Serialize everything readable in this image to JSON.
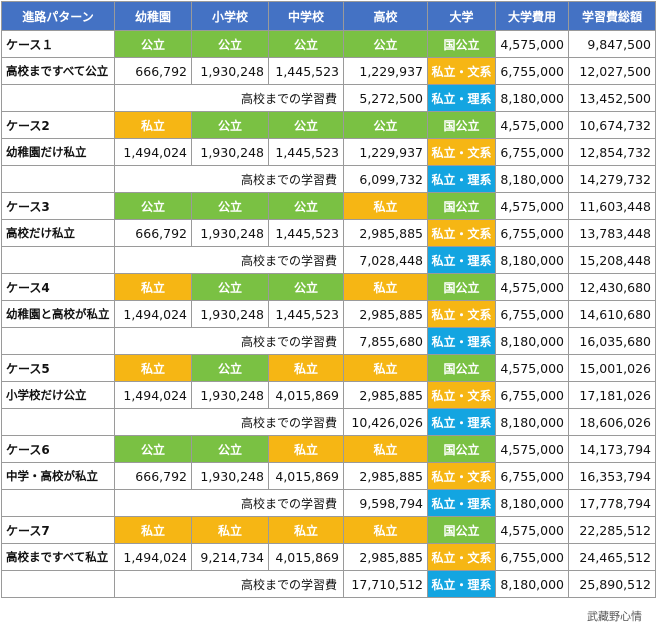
{
  "headers": [
    "進路パターン",
    "幼稚園",
    "小学校",
    "中学校",
    "高校",
    "大学",
    "大学費用",
    "学習費総額"
  ],
  "subtotal_label": "高校までの学習費",
  "university_labels": [
    "国公立",
    "私立・文系",
    "私立・理系"
  ],
  "university_costs": [
    "4,575,000",
    "6,755,000",
    "8,180,000"
  ],
  "cases": [
    {
      "title": "ケース１",
      "desc": "高校まですべて公立",
      "types": [
        "公立",
        "公立",
        "公立",
        "公立"
      ],
      "costs": [
        "666,792",
        "1,930,248",
        "1,445,523",
        "1,229,937"
      ],
      "subtotal": "5,272,500",
      "totals": [
        "9,847,500",
        "12,027,500",
        "13,452,500"
      ]
    },
    {
      "title": "ケース2",
      "desc": "幼稚園だけ私立",
      "types": [
        "私立",
        "公立",
        "公立",
        "公立"
      ],
      "costs": [
        "1,494,024",
        "1,930,248",
        "1,445,523",
        "1,229,937"
      ],
      "subtotal": "6,099,732",
      "totals": [
        "10,674,732",
        "12,854,732",
        "14,279,732"
      ]
    },
    {
      "title": "ケース3",
      "desc": "高校だけ私立",
      "types": [
        "公立",
        "公立",
        "公立",
        "私立"
      ],
      "costs": [
        "666,792",
        "1,930,248",
        "1,445,523",
        "2,985,885"
      ],
      "subtotal": "7,028,448",
      "totals": [
        "11,603,448",
        "13,783,448",
        "15,208,448"
      ]
    },
    {
      "title": "ケース4",
      "desc": "幼稚園と高校が私立",
      "types": [
        "私立",
        "公立",
        "公立",
        "私立"
      ],
      "costs": [
        "1,494,024",
        "1,930,248",
        "1,445,523",
        "2,985,885"
      ],
      "subtotal": "7,855,680",
      "totals": [
        "12,430,680",
        "14,610,680",
        "16,035,680"
      ]
    },
    {
      "title": "ケース5",
      "desc": "小学校だけ公立",
      "types": [
        "私立",
        "公立",
        "私立",
        "私立"
      ],
      "costs": [
        "1,494,024",
        "1,930,248",
        "4,015,869",
        "2,985,885"
      ],
      "subtotal": "10,426,026",
      "totals": [
        "15,001,026",
        "17,181,026",
        "18,606,026"
      ]
    },
    {
      "title": "ケース6",
      "desc": "中学・高校が私立",
      "types": [
        "公立",
        "公立",
        "私立",
        "私立"
      ],
      "costs": [
        "666,792",
        "1,930,248",
        "4,015,869",
        "2,985,885"
      ],
      "subtotal": "9,598,794",
      "totals": [
        "14,173,794",
        "16,353,794",
        "17,778,794"
      ]
    },
    {
      "title": "ケース7",
      "desc": "高校まですべて私立",
      "types": [
        "私立",
        "私立",
        "私立",
        "私立"
      ],
      "costs": [
        "1,494,024",
        "9,214,734",
        "4,015,869",
        "2,985,885"
      ],
      "subtotal": "17,710,512",
      "totals": [
        "22,285,512",
        "24,465,512",
        "25,890,512"
      ]
    }
  ],
  "watermark": "武藏野心情",
  "colors": {
    "header": "#4472c4",
    "public": "#7ac143",
    "private": "#f6b614",
    "science": "#13a5e1"
  }
}
